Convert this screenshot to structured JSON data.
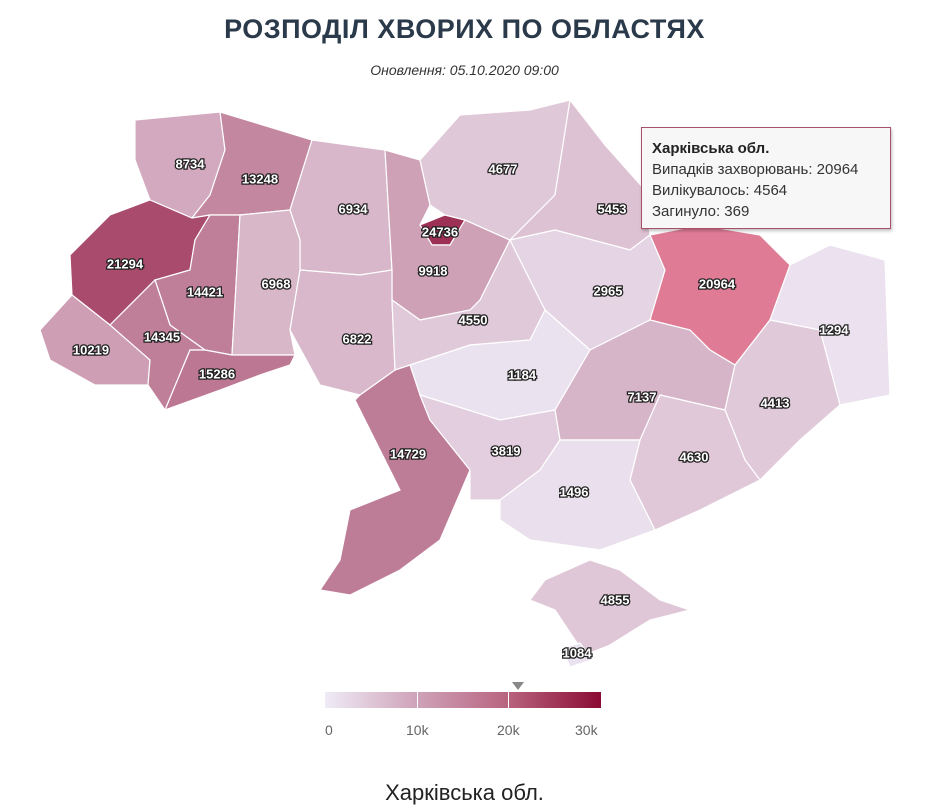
{
  "title": "РОЗПОДІЛ ХВОРИХ ПО ОБЛАСТЯХ",
  "subtitle": "Оновлення: 05.10.2020 09:00",
  "colors": {
    "low": "#efebf7",
    "high": "#8b0a33",
    "hover": "#e07b96"
  },
  "map": {
    "scale_max": 30000,
    "hovered_region": "kharkiv",
    "regions": [
      {
        "id": "volyn",
        "value": 8734
      },
      {
        "id": "rivne",
        "value": 13248
      },
      {
        "id": "zhytomyr",
        "value": 6934
      },
      {
        "id": "kyiv_city",
        "value": 24736
      },
      {
        "id": "kyiv",
        "value": 9918
      },
      {
        "id": "chernihiv",
        "value": 4677
      },
      {
        "id": "sumy",
        "value": 5453
      },
      {
        "id": "lviv",
        "value": 21294
      },
      {
        "id": "ternopil",
        "value": 14421
      },
      {
        "id": "khmelnytskyi",
        "value": 6968
      },
      {
        "id": "vinnytsia",
        "value": 6822
      },
      {
        "id": "zakarpattia",
        "value": 10219
      },
      {
        "id": "ivano_frankivsk",
        "value": 14345
      },
      {
        "id": "chernivtsi",
        "value": 15286
      },
      {
        "id": "cherkasy",
        "value": 4550
      },
      {
        "id": "poltava",
        "value": 2965
      },
      {
        "id": "kharkiv",
        "value": 20964
      },
      {
        "id": "luhansk",
        "value": 1294
      },
      {
        "id": "kirovohrad",
        "value": 1184
      },
      {
        "id": "dnipro",
        "value": 7137
      },
      {
        "id": "donetsk",
        "value": 4413
      },
      {
        "id": "odesa",
        "value": 14729
      },
      {
        "id": "mykolaiv",
        "value": 3819
      },
      {
        "id": "zaporizhzhia",
        "value": 4630
      },
      {
        "id": "kherson",
        "value": 1496
      },
      {
        "id": "crimea",
        "value": 4855
      },
      {
        "id": "sevastopol",
        "value": 1084
      }
    ]
  },
  "tooltip": {
    "name": "Харківська обл.",
    "cases": "Випадків захворювань: 20964",
    "recovered": "Вилікувалось: 4564",
    "deaths": "Загинуло: 369"
  },
  "legend": {
    "ticks": [
      "0",
      "10k",
      "20k",
      "30k"
    ],
    "marker_value": 20964
  },
  "selected_region": "Харківська обл."
}
